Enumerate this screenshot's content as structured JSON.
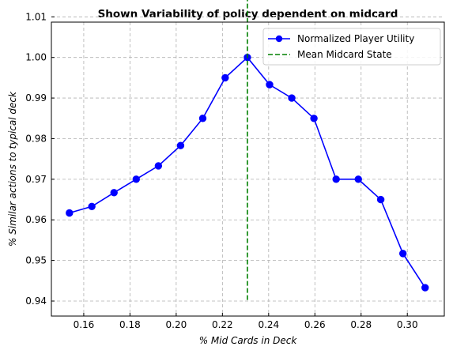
{
  "chart_data": {
    "type": "line",
    "title": "Shown Variability of policy dependent on midcard",
    "xlabel": "% Mid Cards in Deck",
    "ylabel": "% Similar actions to typical deck",
    "xlim": [
      0.146,
      0.316
    ],
    "ylim": [
      0.9363,
      1.0087
    ],
    "xticks": [
      0.16,
      0.18,
      0.2,
      0.22,
      0.24,
      0.26,
      0.28,
      0.3
    ],
    "xtick_labels": [
      "0.16",
      "0.18",
      "0.20",
      "0.22",
      "0.24",
      "0.26",
      "0.28",
      "0.30"
    ],
    "yticks": [
      0.94,
      0.95,
      0.96,
      0.97,
      0.98,
      0.99,
      1.0,
      1.01
    ],
    "ytick_labels": [
      "0.94",
      "0.95",
      "0.96",
      "0.97",
      "0.98",
      "0.99",
      "1.00",
      "1.01"
    ],
    "grid": true,
    "legend_position": "top-right",
    "series": [
      {
        "name": "Normalized Player Utility",
        "color": "#0000ff",
        "style": "solid-line-circle-markers",
        "x": [
          0.1538,
          0.1635,
          0.1731,
          0.1827,
          0.1923,
          0.2019,
          0.2115,
          0.2212,
          0.2308,
          0.2404,
          0.25,
          0.2596,
          0.2692,
          0.2788,
          0.2885,
          0.2981,
          0.3077
        ],
        "y": [
          0.9617,
          0.9633,
          0.9667,
          0.97,
          0.9733,
          0.9783,
          0.985,
          0.995,
          1.0,
          0.9933,
          0.99,
          0.985,
          0.97,
          0.97,
          0.965,
          0.9517,
          0.9433
        ]
      }
    ],
    "reference_lines": [
      {
        "name": "Mean Midcard State",
        "orientation": "vertical",
        "color": "#008000",
        "style": "dashed",
        "x": 0.2308,
        "y_range": [
          0.94,
          1.015
        ]
      }
    ]
  }
}
